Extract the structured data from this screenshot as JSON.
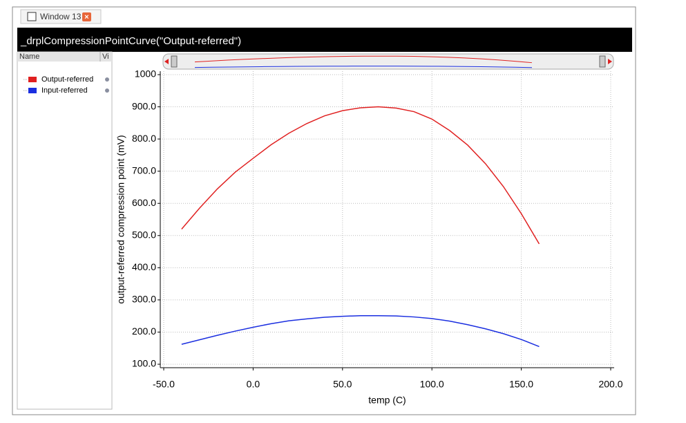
{
  "window": {
    "tab_title": "Window 13"
  },
  "panel": {
    "columns": [
      "Name",
      "Vi"
    ]
  },
  "chart_data": {
    "type": "line",
    "title": "_drplCompressionPointCurve(\"Output-referred\")",
    "x_label": "temp (C)",
    "y_label": "output-referred compression point (mV)",
    "x": [
      -40,
      -30,
      -20,
      -10,
      0,
      10,
      20,
      30,
      40,
      50,
      60,
      70,
      80,
      90,
      100,
      110,
      120,
      130,
      140,
      150,
      160
    ],
    "series": [
      {
        "name": "Output-referred",
        "color": "#e02020",
        "values": [
          520,
          585,
          645,
          697,
          740,
          782,
          818,
          848,
          872,
          888,
          897,
          900,
          896,
          885,
          862,
          826,
          781,
          723,
          652,
          568,
          474
        ]
      },
      {
        "name": "Input-referred",
        "color": "#1a2ee0",
        "values": [
          162,
          176,
          190,
          203,
          215,
          226,
          235,
          241,
          246,
          249,
          251,
          251,
          250,
          247,
          242,
          234,
          223,
          210,
          195,
          177,
          155
        ]
      }
    ],
    "xlim": [
      -50,
      200
    ],
    "xticks": [
      {
        "value": -50,
        "label": "-50.0"
      },
      {
        "value": 0,
        "label": "0.0"
      },
      {
        "value": 50,
        "label": "50.0"
      },
      {
        "value": 100,
        "label": "100.0"
      },
      {
        "value": 150,
        "label": "150.0"
      },
      {
        "value": 200,
        "label": "200.0"
      }
    ],
    "ylim": [
      100,
      1000
    ],
    "yticks": [
      {
        "value": 100,
        "label": "100.0"
      },
      {
        "value": 200,
        "label": "200.0"
      },
      {
        "value": 300,
        "label": "300.0"
      },
      {
        "value": 400,
        "label": "400.0"
      },
      {
        "value": 500,
        "label": "500.0"
      },
      {
        "value": 600,
        "label": "600.0"
      },
      {
        "value": 700,
        "label": "700.0"
      },
      {
        "value": 800,
        "label": "800.0"
      },
      {
        "value": 900,
        "label": "900.0"
      },
      1000
    ],
    "grid": true
  }
}
